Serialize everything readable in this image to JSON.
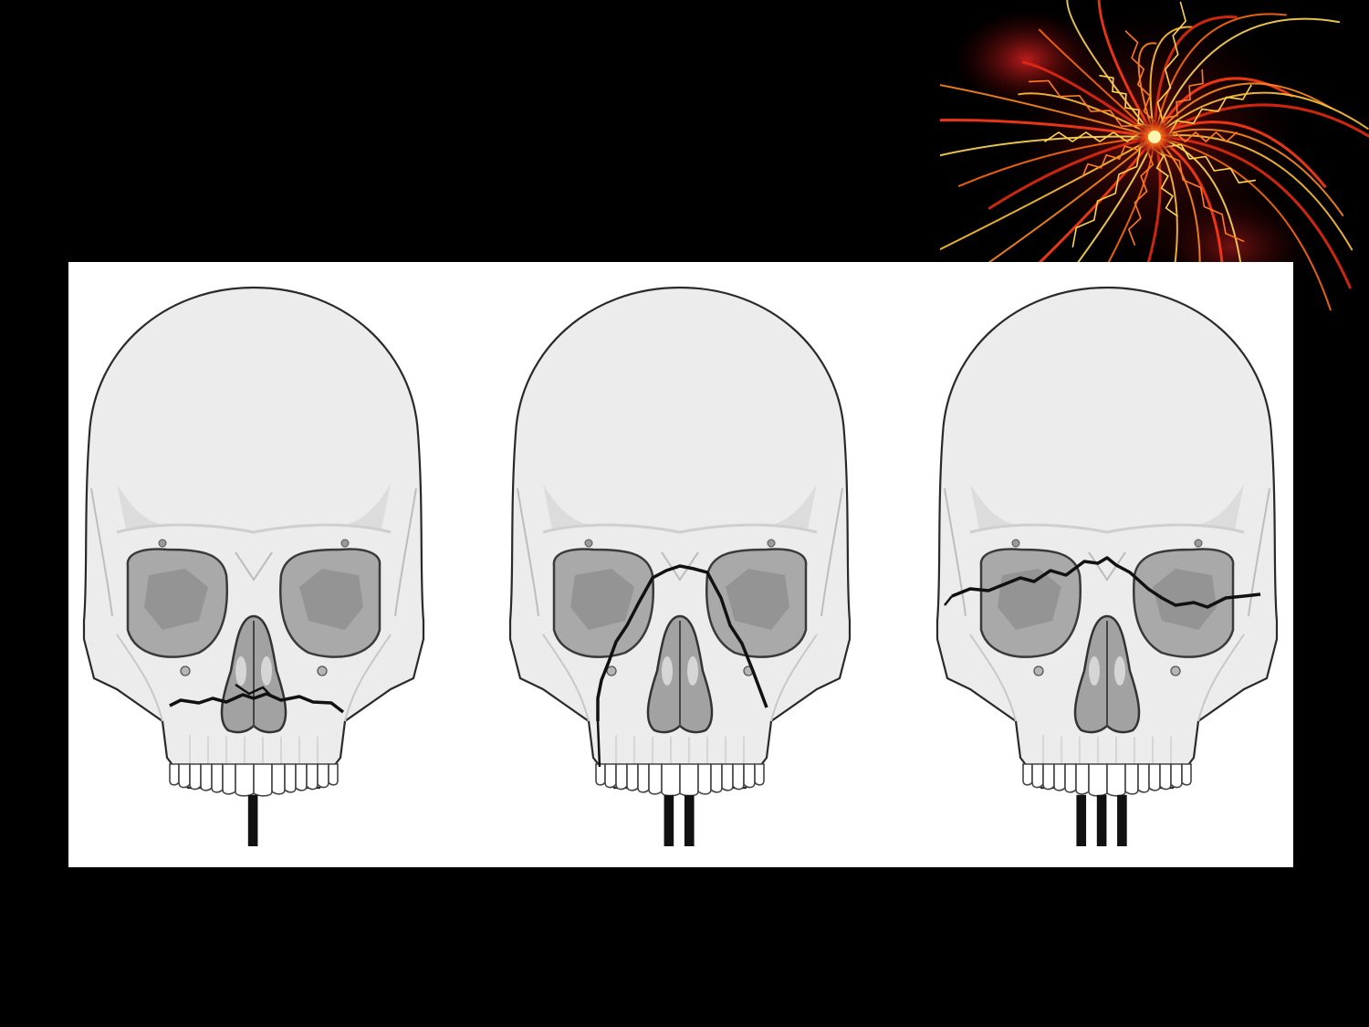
{
  "slide": {
    "background": "#000000",
    "decoration": "firework-burst"
  },
  "diagram": {
    "panel_background": "#ffffff",
    "skull_fill": "#ececec",
    "orbit_fill": "#a9a9a9",
    "fracture_color": "#111111",
    "panels": [
      {
        "numeral": "I",
        "fracture_type": "horizontal-maxillary"
      },
      {
        "numeral": "II",
        "fracture_type": "pyramidal"
      },
      {
        "numeral": "III",
        "fracture_type": "craniofacial-disjunction"
      }
    ]
  }
}
